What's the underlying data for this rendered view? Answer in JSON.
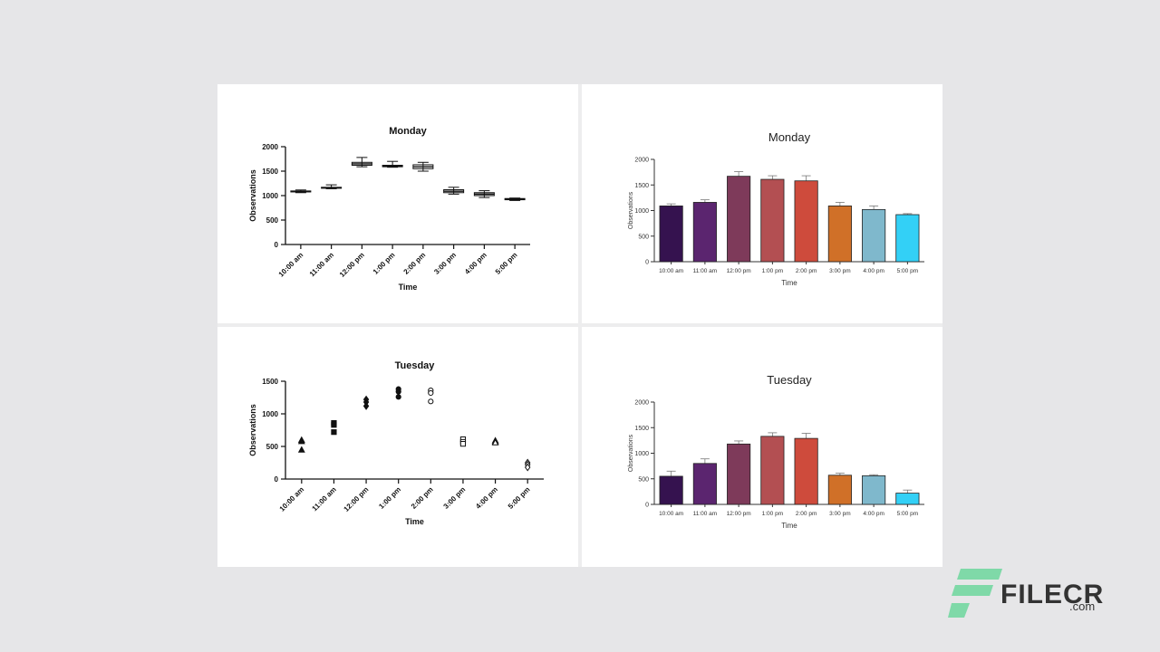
{
  "chart_data": [
    {
      "type": "box",
      "panel": "top-left",
      "title": "Monday",
      "xlabel": "Time",
      "ylabel": "Observations",
      "ylim": [
        0,
        2000
      ],
      "yticks": [
        0,
        500,
        1000,
        1500,
        2000
      ],
      "categories": [
        "10:00 am",
        "11:00 am",
        "12:00 pm",
        "1:00 pm",
        "2:00 pm",
        "3:00 pm",
        "4:00 pm",
        "5:00 pm"
      ],
      "series": [
        {
          "name": "Monday",
          "values": [
            {
              "min": 1060,
              "q1": 1075,
              "median": 1085,
              "q3": 1095,
              "max": 1115
            },
            {
              "min": 1140,
              "q1": 1150,
              "median": 1160,
              "q3": 1170,
              "max": 1220
            },
            {
              "min": 1590,
              "q1": 1620,
              "median": 1650,
              "q3": 1680,
              "max": 1780
            },
            {
              "min": 1580,
              "q1": 1590,
              "median": 1600,
              "q3": 1620,
              "max": 1700
            },
            {
              "min": 1500,
              "q1": 1550,
              "median": 1590,
              "q3": 1630,
              "max": 1680
            },
            {
              "min": 1030,
              "q1": 1060,
              "median": 1090,
              "q3": 1120,
              "max": 1170
            },
            {
              "min": 960,
              "q1": 1000,
              "median": 1030,
              "q3": 1060,
              "max": 1100
            },
            {
              "min": 900,
              "q1": 915,
              "median": 930,
              "q3": 940,
              "max": 950
            }
          ]
        }
      ]
    },
    {
      "type": "bar",
      "panel": "top-right",
      "title": "Monday",
      "xlabel": "Time",
      "ylabel": "Observations",
      "ylim": [
        0,
        2000
      ],
      "yticks": [
        0,
        500,
        1000,
        1500,
        2000
      ],
      "categories": [
        "10:00 am",
        "11:00 am",
        "12:00 pm",
        "1:00 pm",
        "2:00 pm",
        "3:00 pm",
        "4:00 pm",
        "5:00 pm"
      ],
      "series": [
        {
          "name": "Monday",
          "values": [
            1090,
            1160,
            1670,
            1610,
            1580,
            1090,
            1020,
            920
          ],
          "errors": [
            40,
            50,
            90,
            70,
            100,
            70,
            70,
            20
          ]
        }
      ],
      "colors": [
        "#35124f",
        "#5b256f",
        "#7e3a5a",
        "#b34f52",
        "#ce4b3c",
        "#d07028",
        "#7fb8cc",
        "#33d0f6"
      ]
    },
    {
      "type": "scatter",
      "panel": "bottom-left",
      "title": "Tuesday",
      "xlabel": "Time",
      "ylabel": "Observations",
      "ylim": [
        0,
        1500
      ],
      "yticks": [
        0,
        500,
        1000,
        1500
      ],
      "categories": [
        "10:00 am",
        "11:00 am",
        "12:00 pm",
        "1:00 pm",
        "2:00 pm",
        "3:00 pm",
        "4:00 pm",
        "5:00 pm"
      ],
      "series": [
        {
          "name": "Tuesday",
          "points": [
            {
              "category": 0,
              "values": [
                600,
                580,
                450
              ],
              "marker": "triangle-filled"
            },
            {
              "category": 1,
              "values": [
                860,
                830,
                720
              ],
              "marker": "square-filled"
            },
            {
              "category": 2,
              "values": [
                1220,
                1180,
                1120
              ],
              "marker": "diamond-filled"
            },
            {
              "category": 3,
              "values": [
                1380,
                1340,
                1260
              ],
              "marker": "circle-filled"
            },
            {
              "category": 4,
              "values": [
                1360,
                1320,
                1190
              ],
              "marker": "circle-open"
            },
            {
              "category": 5,
              "values": [
                610,
                570,
                540
              ],
              "marker": "square-open"
            },
            {
              "category": 6,
              "values": [
                590,
                570,
                560
              ],
              "marker": "triangle-open"
            },
            {
              "category": 7,
              "values": [
                250,
                220,
                180
              ],
              "marker": "diamond-open"
            }
          ]
        }
      ]
    },
    {
      "type": "bar",
      "panel": "bottom-right",
      "title": "Tuesday",
      "xlabel": "Time",
      "ylabel": "Observations",
      "ylim": [
        0,
        2000
      ],
      "yticks": [
        0,
        500,
        1000,
        1500,
        2000
      ],
      "categories": [
        "10:00 am",
        "11:00 am",
        "12:00 pm",
        "1:00 pm",
        "2:00 pm",
        "3:00 pm",
        "4:00 pm",
        "5:00 pm"
      ],
      "series": [
        {
          "name": "Tuesday",
          "values": [
            550,
            800,
            1180,
            1330,
            1290,
            570,
            560,
            220
          ],
          "errors": [
            100,
            90,
            60,
            70,
            100,
            40,
            20,
            60
          ]
        }
      ],
      "colors": [
        "#35124f",
        "#5b256f",
        "#7e3a5a",
        "#b34f52",
        "#ce4b3c",
        "#d07028",
        "#7fb8cc",
        "#33d0f6"
      ]
    }
  ],
  "watermark": {
    "name": "FILECR",
    "suffix": ".com",
    "color": "#7fd9a8"
  }
}
